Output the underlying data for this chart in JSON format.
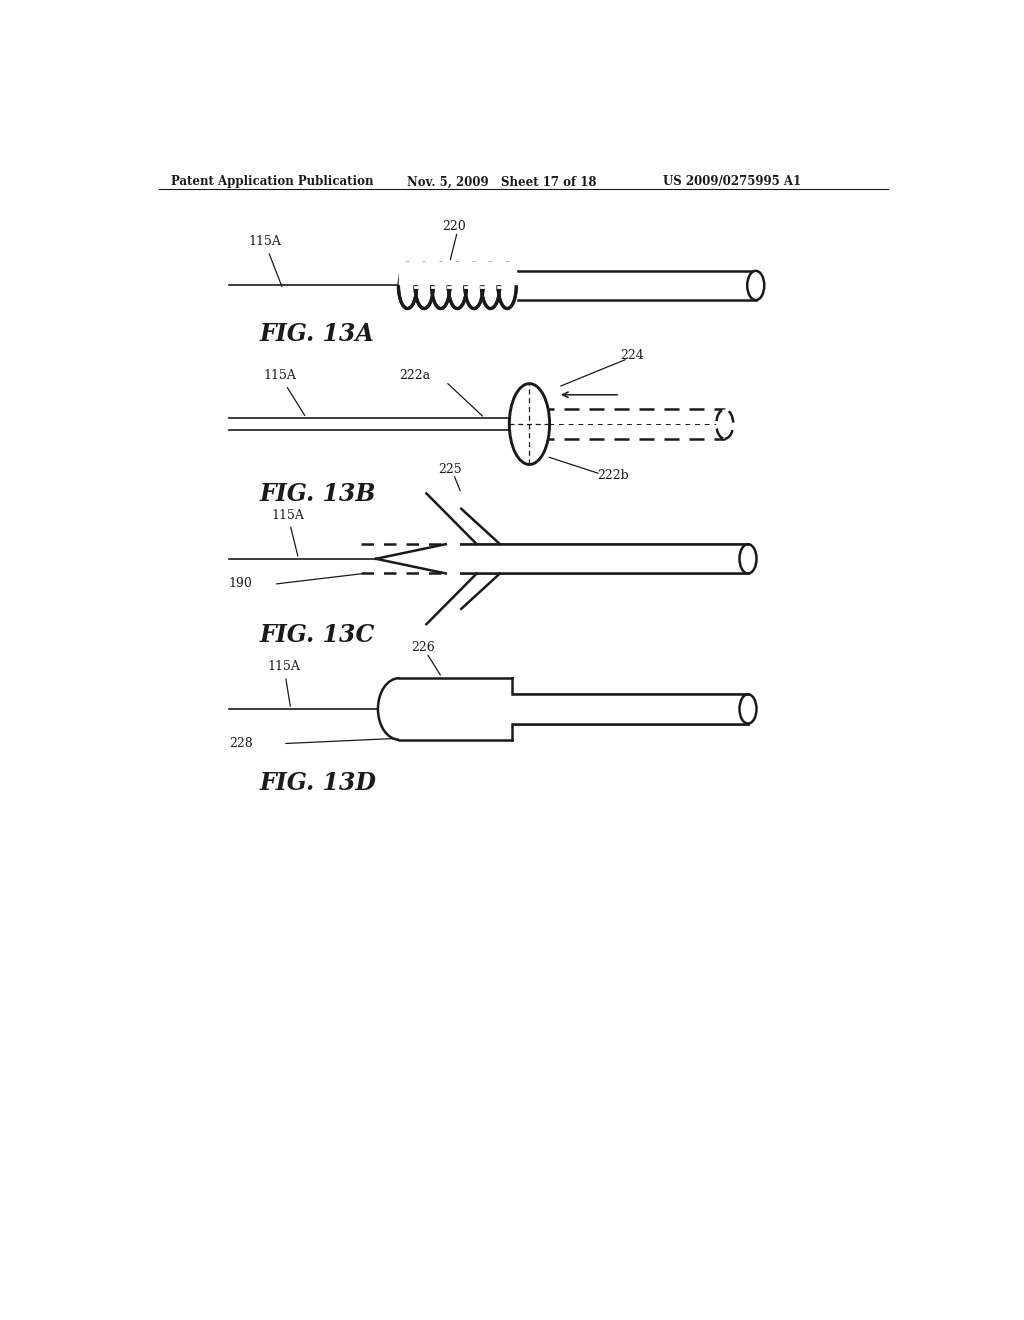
{
  "bg_color": "#ffffff",
  "header_left": "Patent Application Publication",
  "header_mid": "Nov. 5, 2009   Sheet 17 of 18",
  "header_right": "US 2009/0275995 A1",
  "fig13A_label": "FIG. 13A",
  "fig13B_label": "FIG. 13B",
  "fig13C_label": "FIG. 13C",
  "fig13D_label": "FIG. 13D",
  "line_color": "#1a1a1a"
}
